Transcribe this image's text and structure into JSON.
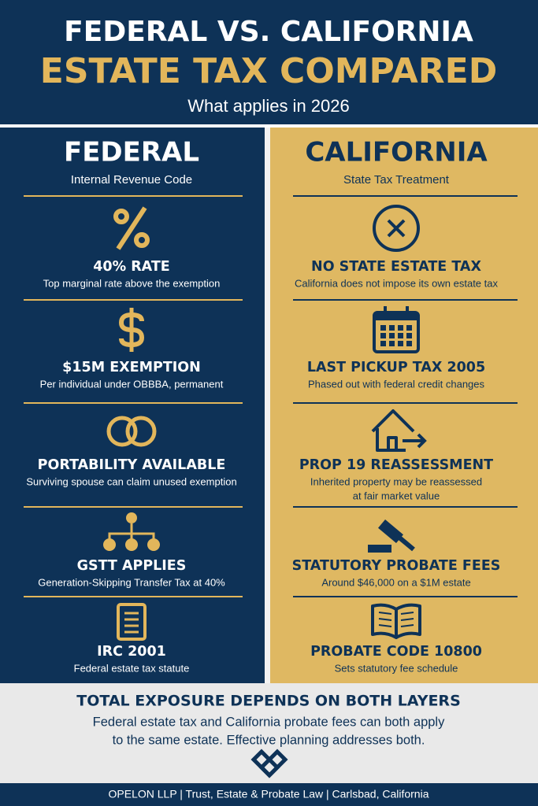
{
  "header": {
    "title_line1": "FEDERAL VS. CALIFORNIA",
    "title_line2": "ESTATE TAX COMPARED",
    "subtitle": "What applies in 2026"
  },
  "columns": [
    {
      "heading": "FEDERAL",
      "subheading": "Internal Revenue Code",
      "items": [
        {
          "title": "40% RATE",
          "description": [
            "Top marginal rate above the exemption"
          ]
        },
        {
          "title": "$15M EXEMPTION",
          "description": [
            "Per individual under OBBBA, permanent"
          ]
        },
        {
          "title": "PORTABILITY AVAILABLE",
          "description": [
            "Surviving spouse can claim unused exemption"
          ]
        },
        {
          "title": "GSTT APPLIES",
          "description": [
            "Generation-Skipping Transfer Tax at 40%"
          ]
        },
        {
          "title": "IRC 2001",
          "description": [
            "Federal estate tax statute"
          ]
        }
      ]
    },
    {
      "heading": "CALIFORNIA",
      "subheading": "State Tax Treatment",
      "items": [
        {
          "title": "NO STATE ESTATE TAX",
          "description": [
            "California does not impose its own estate tax"
          ]
        },
        {
          "title": "LAST PICKUP TAX 2005",
          "description": [
            "Phased out with federal credit changes"
          ]
        },
        {
          "title": "PROP 19 REASSESSMENT",
          "description": [
            "Inherited property may be reassessed",
            "at fair market value"
          ]
        },
        {
          "title": "STATUTORY PROBATE FEES",
          "description": [
            "Around $46,000 on a $1M estate"
          ]
        },
        {
          "title": "PROBATE CODE 10800",
          "description": [
            "Sets statutory fee schedule"
          ]
        }
      ]
    }
  ],
  "summary": {
    "title": "TOTAL EXPOSURE DEPENDS ON BOTH LAYERS",
    "text": [
      "Federal estate tax and California probate fees can both apply",
      "to the same estate. Effective planning addresses both."
    ]
  },
  "footer": "OPELON LLP  |  Trust, Estate & Probate Law  |  Carlsbad, California"
}
